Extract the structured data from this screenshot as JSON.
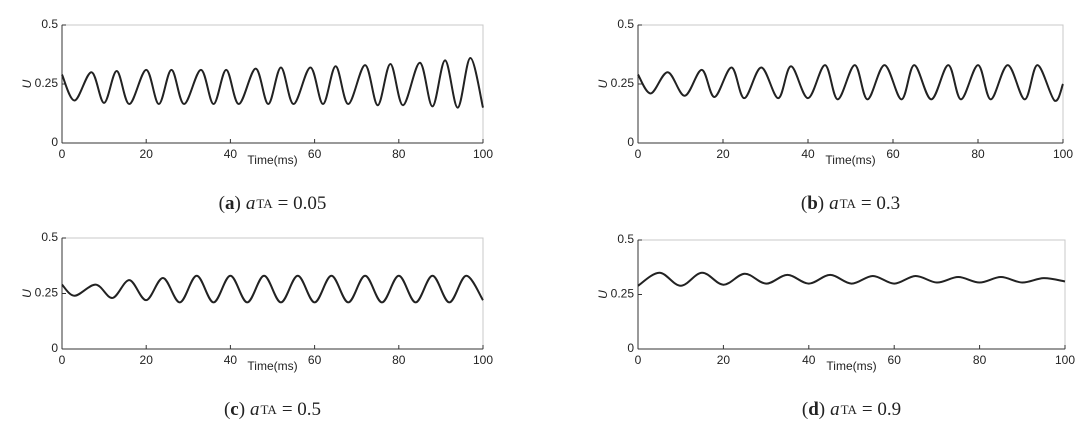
{
  "chart_data": [
    {
      "type": "line",
      "caption": [
        "(",
        "a",
        ")",
        "a",
        "TA",
        "= 0.05"
      ],
      "x_label": "Time(ms)",
      "y_label": "U",
      "xlim": [
        0,
        100
      ],
      "xticks": [
        0,
        20,
        40,
        60,
        80,
        100
      ],
      "ylim": [
        0,
        0.5
      ],
      "yticks": [
        0,
        0.25,
        0.5
      ],
      "series": [
        {
          "color": "#222222",
          "x": [
            0,
            3,
            7,
            10,
            13,
            16,
            20,
            23,
            26,
            29,
            33,
            36,
            39,
            42,
            46,
            49,
            52,
            55,
            59,
            62,
            65,
            68,
            72,
            75,
            78,
            81,
            85,
            88,
            91,
            94,
            97,
            100
          ],
          "values": [
            0.29,
            0.18,
            0.3,
            0.17,
            0.305,
            0.165,
            0.31,
            0.165,
            0.31,
            0.165,
            0.31,
            0.165,
            0.31,
            0.165,
            0.315,
            0.165,
            0.32,
            0.165,
            0.32,
            0.165,
            0.325,
            0.165,
            0.33,
            0.16,
            0.335,
            0.16,
            0.34,
            0.155,
            0.35,
            0.15,
            0.36,
            0.15
          ]
        }
      ]
    },
    {
      "type": "line",
      "caption": [
        "(",
        "b",
        ")",
        "a",
        "TA",
        "= 0.3"
      ],
      "x_label": "Time(ms)",
      "y_label": "U",
      "xlim": [
        0,
        100
      ],
      "xticks": [
        0,
        20,
        40,
        60,
        80,
        100
      ],
      "ylim": [
        0,
        0.5
      ],
      "yticks": [
        0,
        0.25,
        0.5
      ],
      "series": [
        {
          "color": "#222222",
          "x": [
            0,
            3,
            7,
            11,
            15,
            18,
            22,
            25,
            29,
            33,
            36,
            40,
            44,
            47,
            51,
            54,
            58,
            62,
            65,
            69,
            73,
            76,
            80,
            83,
            87,
            91,
            94,
            98,
            100
          ],
          "values": [
            0.29,
            0.21,
            0.3,
            0.2,
            0.31,
            0.195,
            0.32,
            0.19,
            0.32,
            0.19,
            0.325,
            0.19,
            0.33,
            0.185,
            0.33,
            0.185,
            0.33,
            0.185,
            0.33,
            0.185,
            0.33,
            0.185,
            0.33,
            0.185,
            0.33,
            0.185,
            0.33,
            0.18,
            0.25
          ]
        }
      ]
    },
    {
      "type": "line",
      "caption": [
        "(",
        "c",
        ")",
        "a",
        "TA",
        "= 0.5"
      ],
      "x_label": "Time(ms)",
      "y_label": "U",
      "xlim": [
        0,
        100
      ],
      "xticks": [
        0,
        20,
        40,
        60,
        80,
        100
      ],
      "ylim": [
        0,
        0.5
      ],
      "yticks": [
        0,
        0.25,
        0.5
      ],
      "series": [
        {
          "color": "#222222",
          "x": [
            0,
            3,
            8,
            12,
            16,
            20,
            24,
            28,
            32,
            36,
            40,
            44,
            48,
            52,
            56,
            60,
            64,
            68,
            72,
            76,
            80,
            84,
            88,
            92,
            96,
            100
          ],
          "values": [
            0.29,
            0.24,
            0.29,
            0.23,
            0.31,
            0.22,
            0.32,
            0.21,
            0.33,
            0.21,
            0.33,
            0.21,
            0.33,
            0.21,
            0.33,
            0.21,
            0.33,
            0.21,
            0.33,
            0.21,
            0.33,
            0.21,
            0.33,
            0.21,
            0.33,
            0.22
          ]
        }
      ]
    },
    {
      "type": "line",
      "caption": [
        "(",
        "d",
        ")",
        "a",
        "TA",
        "= 0.9"
      ],
      "x_label": "Time(ms)",
      "y_label": "U",
      "xlim": [
        0,
        100
      ],
      "xticks": [
        0,
        20,
        40,
        60,
        80,
        100
      ],
      "ylim": [
        0,
        0.5
      ],
      "yticks": [
        0,
        0.25,
        0.5
      ],
      "series": [
        {
          "color": "#222222",
          "x": [
            0,
            5,
            10,
            15,
            20,
            25,
            30,
            35,
            40,
            45,
            50,
            55,
            60,
            65,
            70,
            75,
            80,
            85,
            90,
            95,
            100
          ],
          "values": [
            0.29,
            0.35,
            0.29,
            0.35,
            0.295,
            0.345,
            0.3,
            0.34,
            0.3,
            0.34,
            0.3,
            0.335,
            0.3,
            0.335,
            0.305,
            0.33,
            0.305,
            0.33,
            0.305,
            0.325,
            0.31
          ]
        }
      ]
    }
  ]
}
